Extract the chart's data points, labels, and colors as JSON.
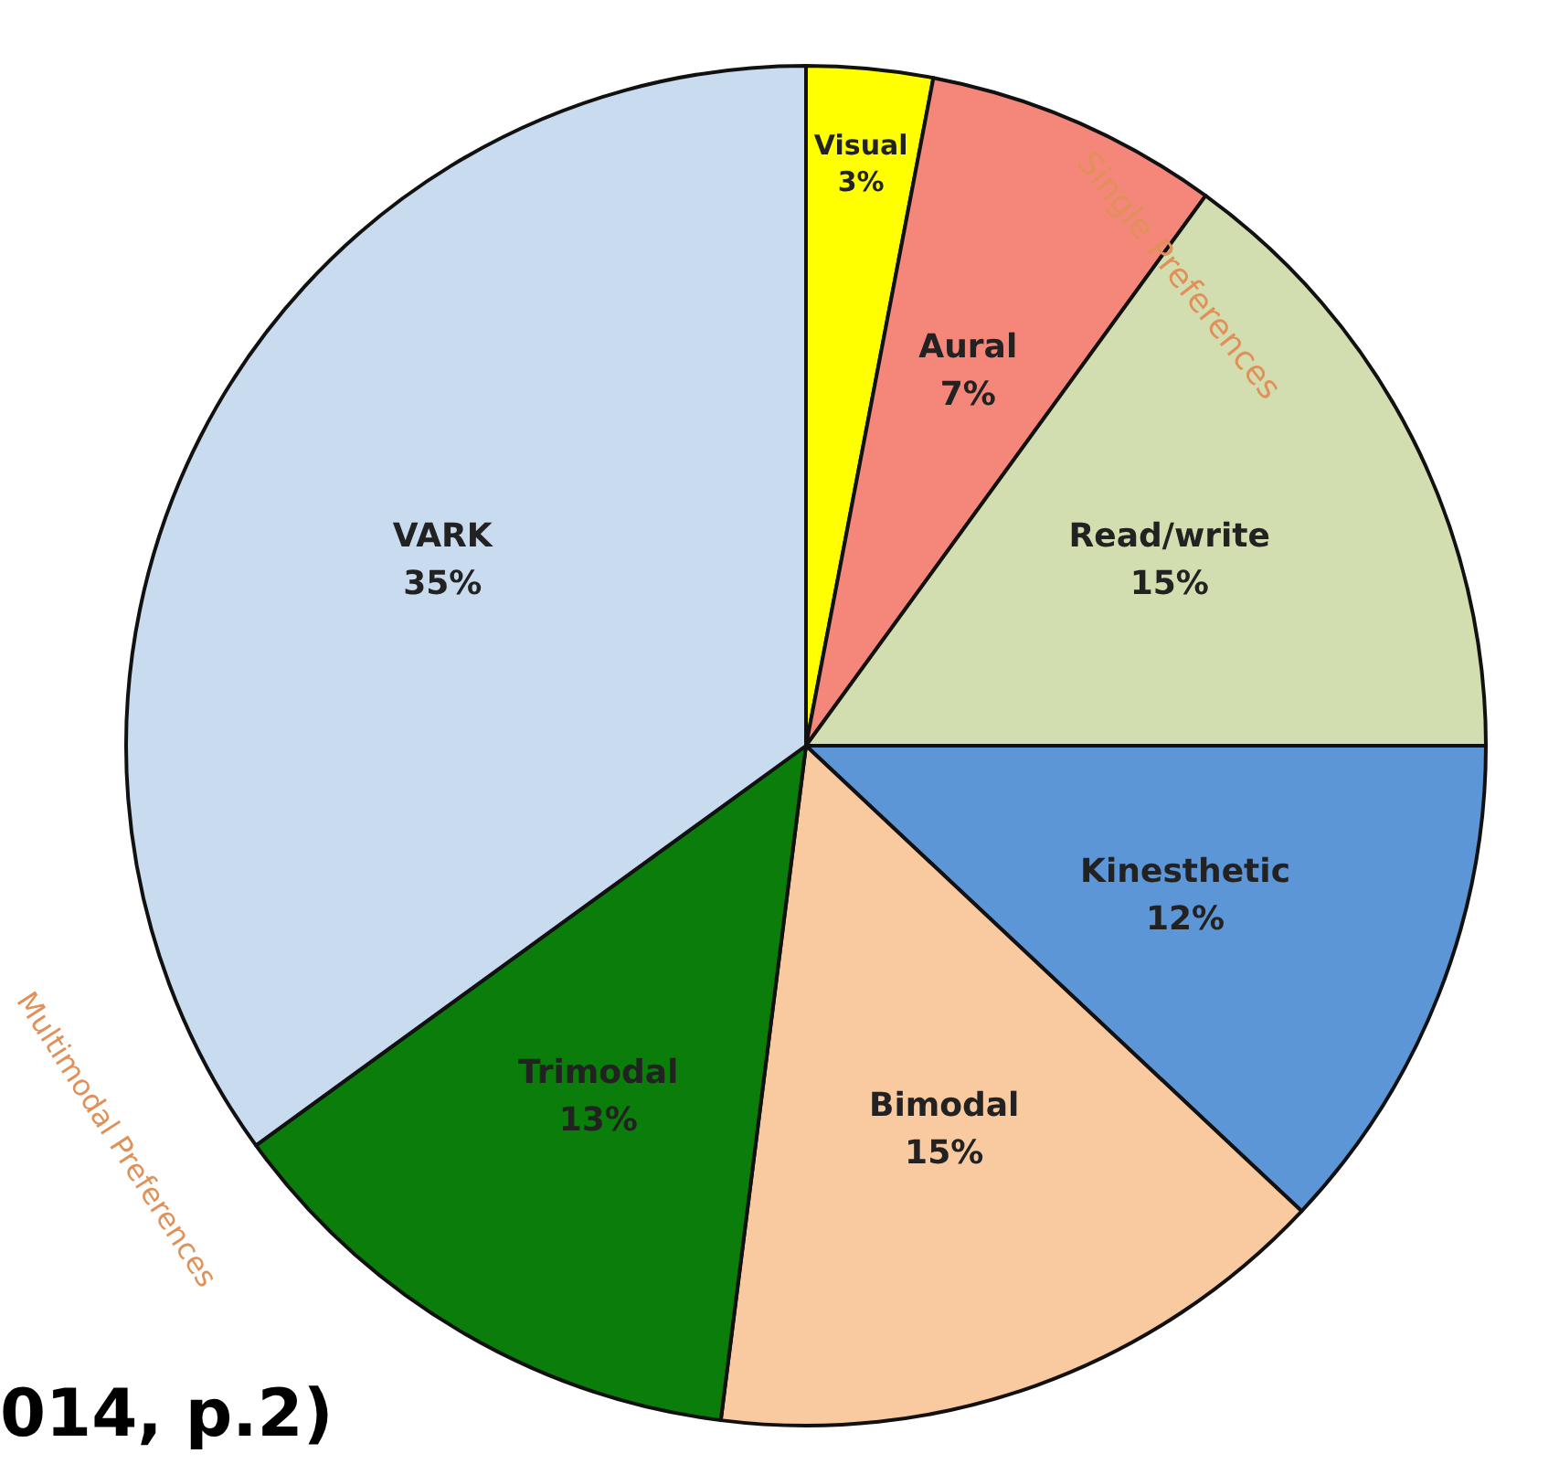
{
  "chart_data": {
    "type": "pie",
    "categories": [
      "Visual",
      "Aural",
      "Read/write",
      "Kinesthetic",
      "Bimodal",
      "Trimodal",
      "VARK"
    ],
    "values": [
      3,
      7,
      15,
      12,
      15,
      13,
      35
    ],
    "value_labels": [
      "3%",
      "7%",
      "15%",
      "12%",
      "15%",
      "13%",
      "35%"
    ],
    "colors": [
      "#ffff00",
      "#f4877a",
      "#d3deb0",
      "#5d96d6",
      "#f9c9a0",
      "#0b7d0b",
      "#c9dcef"
    ],
    "annotations": [
      "Single Preferences",
      "Multimodal Preferences",
      "014, p.2)"
    ],
    "legend": false
  }
}
